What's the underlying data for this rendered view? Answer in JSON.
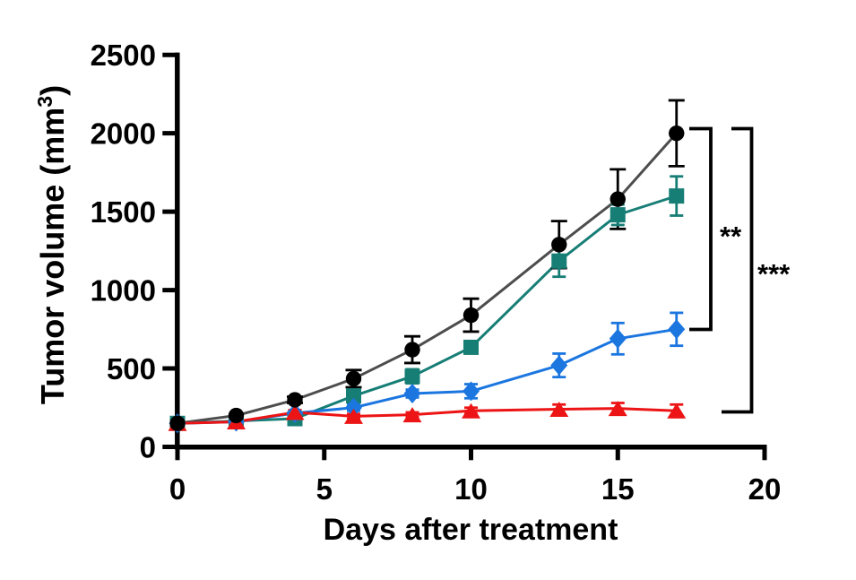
{
  "figure": {
    "x_axis": {
      "label": "Days after treatment",
      "ticks": [
        0,
        5,
        10,
        15,
        20
      ],
      "range": [
        0,
        20
      ]
    },
    "y_axis": {
      "label_prefix": "Tumor volume (mm",
      "label_sup": "3",
      "label_suffix": ")",
      "ticks": [
        0,
        500,
        1000,
        1500,
        2000,
        2500
      ],
      "range": [
        0,
        2500
      ]
    }
  },
  "chart_data": {
    "type": "line",
    "title": "",
    "xlabel": "Days after treatment",
    "ylabel": "Tumor volume (mm3)",
    "x": [
      0,
      2,
      4,
      6,
      8,
      10,
      13,
      15,
      17
    ],
    "xlim": [
      0,
      20
    ],
    "ylim": [
      0,
      2500
    ],
    "grid": false,
    "legend_position": "none",
    "series": [
      {
        "name": "black-circles",
        "marker": "circle",
        "color": "#000000",
        "line_color": "#4d4d4d",
        "values": [
          150,
          200,
          300,
          435,
          620,
          840,
          1290,
          1580,
          2000
        ],
        "errors": [
          0,
          0,
          20,
          55,
          85,
          105,
          150,
          190,
          210
        ]
      },
      {
        "name": "teal-squares",
        "marker": "square",
        "color": "#177e76",
        "line_color": "#177e76",
        "values": [
          150,
          165,
          180,
          325,
          450,
          635,
          1185,
          1480,
          1600
        ],
        "errors": [
          0,
          0,
          15,
          35,
          45,
          35,
          100,
          65,
          125
        ]
      },
      {
        "name": "blue-diamonds",
        "marker": "diamond",
        "color": "#1b76e0",
        "line_color": "#1b76e0",
        "values": [
          150,
          160,
          215,
          250,
          340,
          355,
          520,
          690,
          750
        ],
        "errors": [
          0,
          0,
          15,
          20,
          25,
          45,
          75,
          100,
          105
        ]
      },
      {
        "name": "red-triangles",
        "marker": "triangle",
        "color": "#ec1414",
        "line_color": "#ec1414",
        "values": [
          150,
          160,
          220,
          195,
          205,
          230,
          240,
          245,
          230
        ],
        "errors": [
          0,
          0,
          15,
          15,
          15,
          20,
          30,
          35,
          40
        ]
      }
    ],
    "annotations": [
      {
        "label": "**",
        "compares": [
          "black-circles",
          "blue-diamonds"
        ]
      },
      {
        "label": "***",
        "compares": [
          "black-circles",
          "red-triangles"
        ]
      }
    ]
  }
}
